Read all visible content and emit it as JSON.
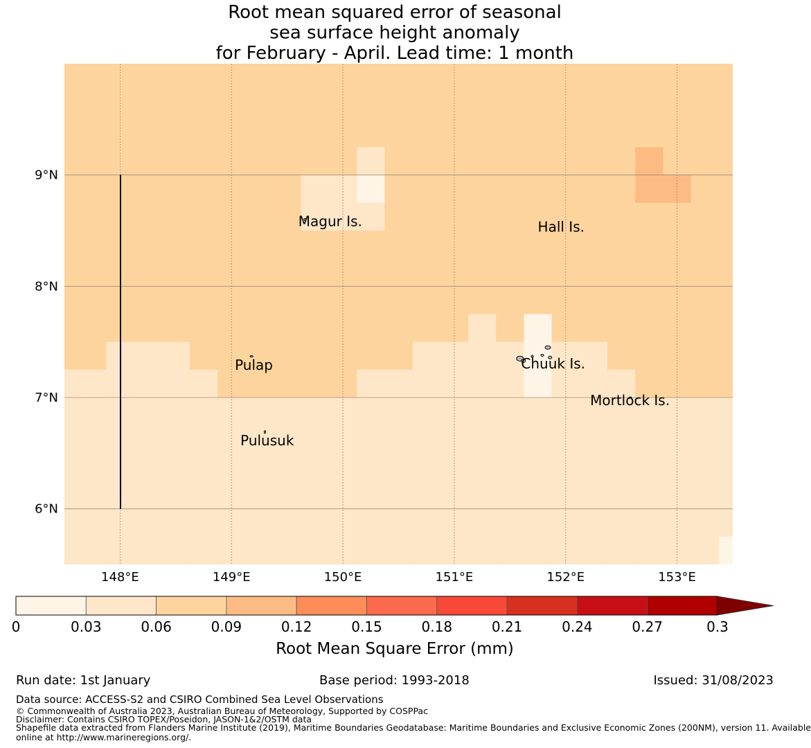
{
  "chart_data": {
    "type": "heatmap",
    "title_lines": [
      "Root mean squared error of seasonal",
      "sea surface height anomaly",
      "for February - April. Lead time: 1 month"
    ],
    "lon_range": [
      147.5,
      153.5
    ],
    "lat_range": [
      5.5,
      10.0
    ],
    "x_ticks": [
      148,
      149,
      150,
      151,
      152,
      153
    ],
    "x_tick_labels": [
      "148°E",
      "149°E",
      "150°E",
      "151°E",
      "152°E",
      "153°E"
    ],
    "y_ticks": [
      6,
      7,
      8,
      9
    ],
    "y_tick_labels": [
      "6°N",
      "7°N",
      "8°N",
      "9°N"
    ],
    "base_value": 0.075,
    "cells": [
      {
        "lon0": 147.5,
        "lon1": 147.875,
        "lat0": 5.5,
        "lat1": 7.25,
        "value": 0.045
      },
      {
        "lon0": 147.875,
        "lon1": 148.625,
        "lat0": 5.5,
        "lat1": 7.5,
        "value": 0.045
      },
      {
        "lon0": 148.625,
        "lon1": 148.875,
        "lat0": 5.5,
        "lat1": 7.25,
        "value": 0.045
      },
      {
        "lon0": 148.875,
        "lon1": 150.125,
        "lat0": 5.5,
        "lat1": 7.0,
        "value": 0.045
      },
      {
        "lon0": 150.125,
        "lon1": 150.625,
        "lat0": 5.5,
        "lat1": 7.25,
        "value": 0.045
      },
      {
        "lon0": 150.625,
        "lon1": 151.125,
        "lat0": 5.5,
        "lat1": 7.5,
        "value": 0.045
      },
      {
        "lon0": 151.125,
        "lon1": 151.375,
        "lat0": 5.5,
        "lat1": 7.75,
        "value": 0.045
      },
      {
        "lon0": 151.375,
        "lon1": 151.625,
        "lat0": 5.5,
        "lat1": 7.5,
        "value": 0.045
      },
      {
        "lon0": 151.625,
        "lon1": 151.875,
        "lat0": 5.5,
        "lat1": 7.0,
        "value": 0.045
      },
      {
        "lon0": 151.625,
        "lon1": 151.875,
        "lat0": 7.0,
        "lat1": 7.75,
        "value": 0.015
      },
      {
        "lon0": 151.875,
        "lon1": 152.375,
        "lat0": 5.5,
        "lat1": 7.5,
        "value": 0.045
      },
      {
        "lon0": 152.375,
        "lon1": 152.625,
        "lat0": 5.5,
        "lat1": 7.25,
        "value": 0.045
      },
      {
        "lon0": 152.625,
        "lon1": 153.5,
        "lat0": 5.5,
        "lat1": 7.0,
        "value": 0.045
      },
      {
        "lon0": 153.375,
        "lon1": 153.5,
        "lat0": 5.5,
        "lat1": 5.75,
        "value": 0.015
      },
      {
        "lon0": 149.625,
        "lon1": 150.125,
        "lat0": 8.5,
        "lat1": 9.0,
        "value": 0.045
      },
      {
        "lon0": 150.125,
        "lon1": 150.375,
        "lat0": 8.5,
        "lat1": 8.75,
        "value": 0.045
      },
      {
        "lon0": 150.125,
        "lon1": 150.375,
        "lat0": 8.75,
        "lat1": 9.0,
        "value": 0.015
      },
      {
        "lon0": 150.125,
        "lon1": 150.375,
        "lat0": 9.0,
        "lat1": 9.25,
        "value": 0.045
      },
      {
        "lon0": 152.625,
        "lon1": 152.875,
        "lat0": 8.75,
        "lat1": 9.25,
        "value": 0.105
      },
      {
        "lon0": 152.875,
        "lon1": 153.125,
        "lat0": 8.75,
        "lat1": 9.0,
        "value": 0.105
      }
    ],
    "place_labels": [
      {
        "name": "Magur Is.",
        "lon": 149.6,
        "lat": 8.54
      },
      {
        "name": "Hall Is.",
        "lon": 151.75,
        "lat": 8.49
      },
      {
        "name": "Pulap",
        "lon": 149.03,
        "lat": 7.25
      },
      {
        "name": "Chuuk Is.",
        "lon": 151.6,
        "lat": 7.26
      },
      {
        "name": "Mortlock Is.",
        "lon": 152.22,
        "lat": 6.93
      },
      {
        "name": "Pulusuk",
        "lon": 149.08,
        "lat": 6.57
      }
    ],
    "colorbar": {
      "label": "Root Mean Square Error (mm)",
      "ticks": [
        "0",
        "0.03",
        "0.06",
        "0.09",
        "0.12",
        "0.15",
        "0.18",
        "0.21",
        "0.24",
        "0.27",
        "0.3"
      ],
      "colors": [
        "#fff5e6",
        "#fee6c8",
        "#fdd49e",
        "#fdbb84",
        "#fc8d59",
        "#fc6a4e",
        "#f84838",
        "#d7301f",
        "#c80f16",
        "#b00000"
      ],
      "extend_color": "#7f0000"
    }
  },
  "footer": {
    "run_date": "Run date: 1st January",
    "base_period": "Base period: 1993-2018",
    "issued": "Issued: 31/08/2023",
    "data_source": "Data source: ACCESS-S2 and CSIRO Combined Sea Level Observations",
    "copyright": "© Commonwealth of Australia 2023, Australian Bureau of Meteorology, Supported by COSPPac",
    "disclaimer": "Disclaimer: Contains CSIRO TOPEX/Poseidon, JASON-1&2/OSTM data",
    "shapefile_line1": "Shapefile data extracted from Flanders Marine Institute (2019), Maritime Boundaries Geodatabase: Maritime Boundaries and Exclusive Economic Zones (200NM), version 11. Available",
    "shapefile_line2": "online at http://www.marineregions.org/."
  }
}
